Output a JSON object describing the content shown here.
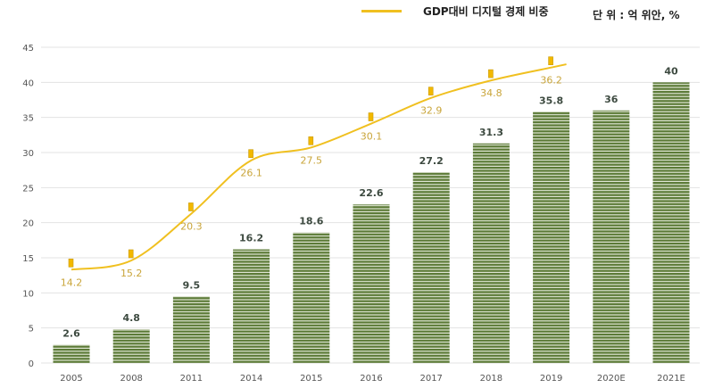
{
  "chart_data": {
    "type": "bar+line",
    "categories": [
      "2005",
      "2008",
      "2011",
      "2014",
      "2015",
      "2016",
      "2017",
      "2018",
      "2019",
      "2020E",
      "2021E"
    ],
    "series": [
      {
        "type": "bar",
        "values": [
          2.6,
          4.8,
          9.5,
          16.2,
          18.6,
          22.6,
          27.2,
          31.3,
          35.8,
          36,
          40
        ],
        "color": "#5b7a36"
      },
      {
        "type": "line",
        "name": "GDP대비 디지털 경제 비중",
        "values": [
          14.2,
          15.2,
          20.3,
          26.1,
          27.5,
          30.1,
          32.9,
          34.8,
          36.2,
          null,
          null
        ],
        "color": "#f0c020"
      }
    ],
    "yticks": [
      0,
      5,
      10,
      15,
      20,
      25,
      30,
      35,
      40,
      45
    ],
    "ylim": [
      0,
      45
    ],
    "grid": true,
    "legend_position": "top",
    "unit_label": "단 위 : 억 위안, %",
    "bar_label_color": "#3d4a40",
    "line_label_color": "#c9a53a"
  }
}
